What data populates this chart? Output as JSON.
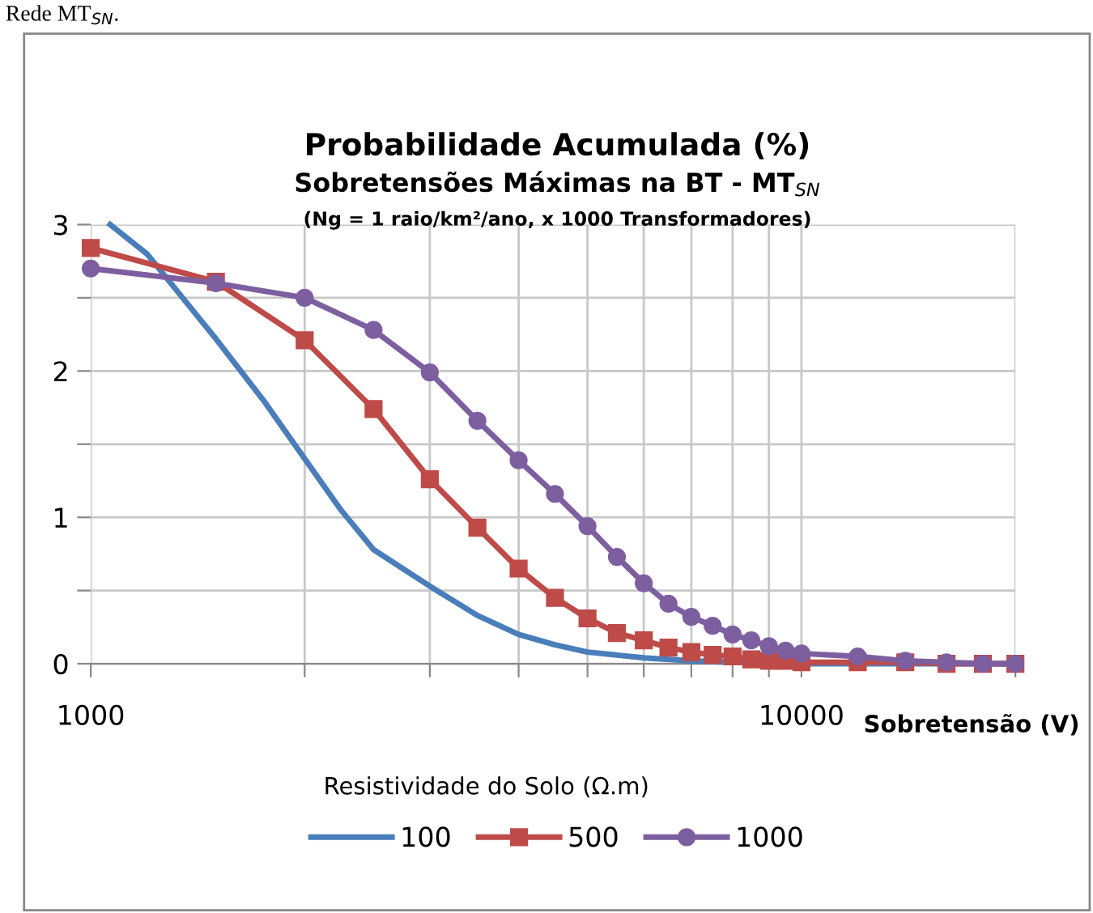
{
  "chart_data": {
    "type": "line",
    "title": "Probabilidade Acumulada (%)",
    "subtitle": "Sobretensões Máximas na BT - MT$_{SN}$\n(Ng = 1 raio/km²/ano, x 1000 Transformadores)",
    "xlabel": "Sobretensão (V)",
    "legend_title": "Resistividade do Solo (Ω.m)",
    "annotations": [
      "Rede MT$_{SN}$."
    ],
    "log": "x",
    "xlim": [
      1000,
      20000
    ],
    "xticks": [
      1000,
      {
        "value": 2000,
        "label": null
      },
      {
        "value": 3000,
        "label": null
      },
      {
        "value": 4000,
        "label": null
      },
      {
        "value": 5000,
        "label": null
      },
      {
        "value": 6000,
        "label": null
      },
      {
        "value": 7000,
        "label": null
      },
      {
        "value": 8000,
        "label": null
      },
      {
        "value": 9000,
        "label": null
      },
      10000,
      {
        "value": 20000,
        "label": null
      }
    ],
    "ylim": [
      0,
      3
    ],
    "yticks": [
      0,
      {
        "value": 0.5,
        "label": null
      },
      1,
      {
        "value": 1.5,
        "label": null
      },
      2,
      {
        "value": 2.5,
        "label": null
      },
      3
    ],
    "grid": true,
    "legend": "bottom",
    "series": [
      {
        "name": "100",
        "color": "#4a7ebb",
        "marker": "none",
        "x": [
          1065,
          1200,
          1500,
          1750,
          2000,
          2250,
          2500,
          3000,
          3500,
          4000,
          4500,
          5000,
          6000,
          7000,
          8000,
          10000,
          20000
        ],
        "values": [
          3.0,
          2.8,
          2.22,
          1.8,
          1.4,
          1.05,
          0.78,
          0.53,
          0.33,
          0.2,
          0.13,
          0.08,
          0.04,
          0.02,
          0.01,
          0.0,
          0
        ]
      },
      {
        "name": "500",
        "color": "#be4b48",
        "marker": "square",
        "x": [
          1000,
          1500,
          2000,
          2500,
          3000,
          3500,
          4000,
          4500,
          5000,
          5500,
          6000,
          6500,
          7000,
          7500,
          8000,
          8500,
          9000,
          9500,
          10000,
          12000,
          14000,
          16000,
          18000,
          20000
        ],
        "values": [
          2.84,
          2.61,
          2.21,
          1.74,
          1.26,
          0.93,
          0.65,
          0.45,
          0.31,
          0.21,
          0.16,
          0.11,
          0.08,
          0.06,
          0.05,
          0.03,
          0.02,
          0.02,
          0.01,
          0.01,
          0.01,
          0,
          0,
          0
        ]
      },
      {
        "name": "1000",
        "color": "#7d5fa0",
        "marker": "circle",
        "x": [
          1000,
          1500,
          2000,
          2500,
          3000,
          3500,
          4000,
          4500,
          5000,
          5500,
          6000,
          6500,
          7000,
          7500,
          8000,
          8500,
          9000,
          9500,
          10000,
          12000,
          14000,
          16000,
          18000,
          20000
        ],
        "values": [
          2.7,
          2.6,
          2.5,
          2.28,
          1.99,
          1.66,
          1.39,
          1.16,
          0.94,
          0.73,
          0.55,
          0.41,
          0.32,
          0.26,
          0.2,
          0.16,
          0.12,
          0.09,
          0.07,
          0.05,
          0.02,
          0.01,
          0,
          0
        ]
      }
    ]
  }
}
